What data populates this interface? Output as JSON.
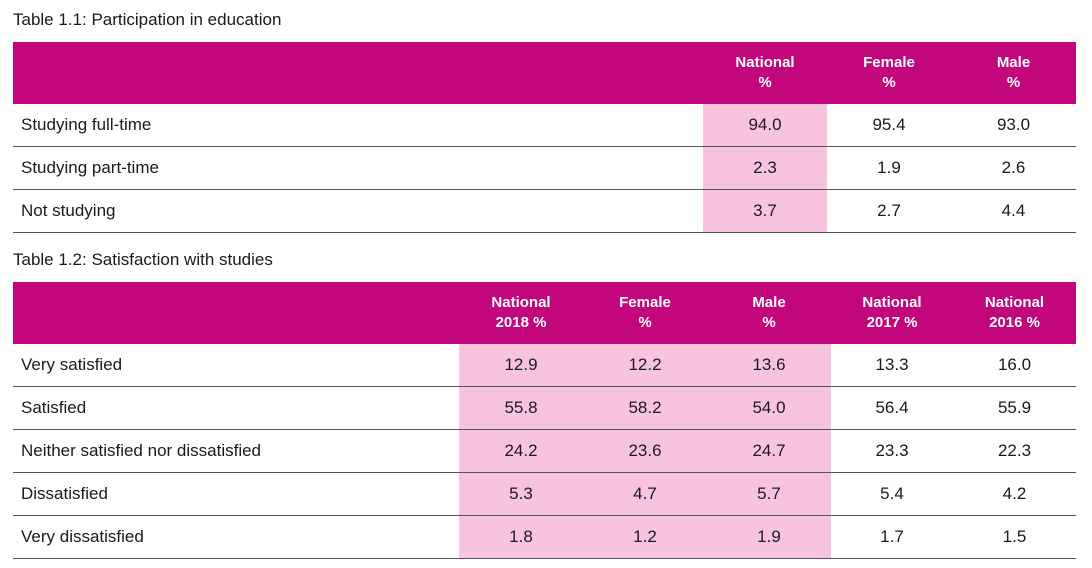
{
  "table1": {
    "caption": "Table 1.1: Participation in education",
    "headers": [
      {
        "line1": "National",
        "line2": "%"
      },
      {
        "line1": "Female",
        "line2": "%"
      },
      {
        "line1": "Male",
        "line2": "%"
      }
    ],
    "rows": [
      {
        "label": "Studying full-time",
        "values": [
          "94.0",
          "95.4",
          "93.0"
        ]
      },
      {
        "label": "Studying part-time",
        "values": [
          "2.3",
          "1.9",
          "2.6"
        ]
      },
      {
        "label": "Not studying",
        "values": [
          "3.7",
          "2.7",
          "4.4"
        ]
      }
    ]
  },
  "table2": {
    "caption": "Table 1.2: Satisfaction with studies",
    "headers": [
      {
        "line1": "National",
        "line2": "2018 %"
      },
      {
        "line1": "Female",
        "line2": "%"
      },
      {
        "line1": "Male",
        "line2": "%"
      },
      {
        "line1": "National",
        "line2": "2017 %"
      },
      {
        "line1": "National",
        "line2": "2016 %"
      }
    ],
    "rows": [
      {
        "label": "Very satisfied",
        "values": [
          "12.9",
          "12.2",
          "13.6",
          "13.3",
          "16.0"
        ]
      },
      {
        "label": "Satisfied",
        "values": [
          "55.8",
          "58.2",
          "54.0",
          "56.4",
          "55.9"
        ]
      },
      {
        "label": "Neither satisfied nor dissatisfied",
        "values": [
          "24.2",
          "23.6",
          "24.7",
          "23.3",
          "22.3"
        ]
      },
      {
        "label": "Dissatisfied",
        "values": [
          "5.3",
          "4.7",
          "5.7",
          "5.4",
          "4.2"
        ]
      },
      {
        "label": "Very dissatisfied",
        "values": [
          "1.8",
          "1.2",
          "1.9",
          "1.7",
          "1.5"
        ]
      }
    ]
  },
  "colors": {
    "header_background": "#c2077d",
    "highlight_background": "#f8c3df",
    "header_text": "#ffffff"
  }
}
